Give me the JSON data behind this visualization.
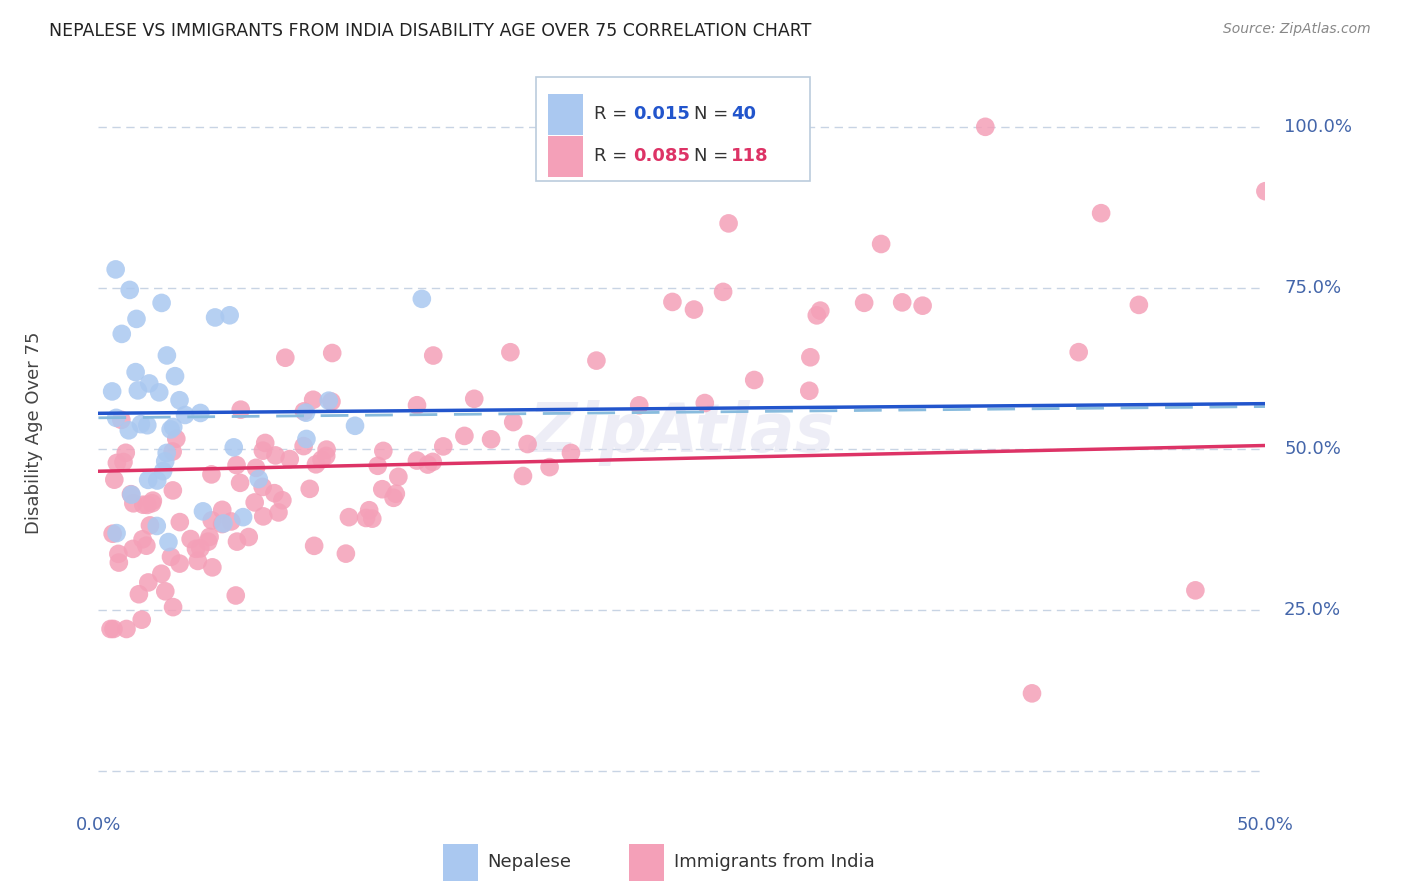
{
  "title": "NEPALESE VS IMMIGRANTS FROM INDIA DISABILITY AGE OVER 75 CORRELATION CHART",
  "source": "Source: ZipAtlas.com",
  "ylabel": "Disability Age Over 75",
  "R_nepalese": 0.015,
  "N_nepalese": 40,
  "R_india": 0.085,
  "N_india": 118,
  "nepalese_color": "#aac8f0",
  "india_color": "#f4a0b8",
  "trendline_nepalese_color": "#2255cc",
  "trendline_india_color": "#dd3366",
  "trendline_dashed_color": "#88bbdd",
  "grid_color": "#c8d4e4",
  "background_color": "#ffffff",
  "title_color": "#222222",
  "source_color": "#888888",
  "axis_label_color": "#4466aa",
  "xmin": 0.0,
  "xmax": 0.5,
  "ymin": 0.0,
  "ymax": 1.1
}
